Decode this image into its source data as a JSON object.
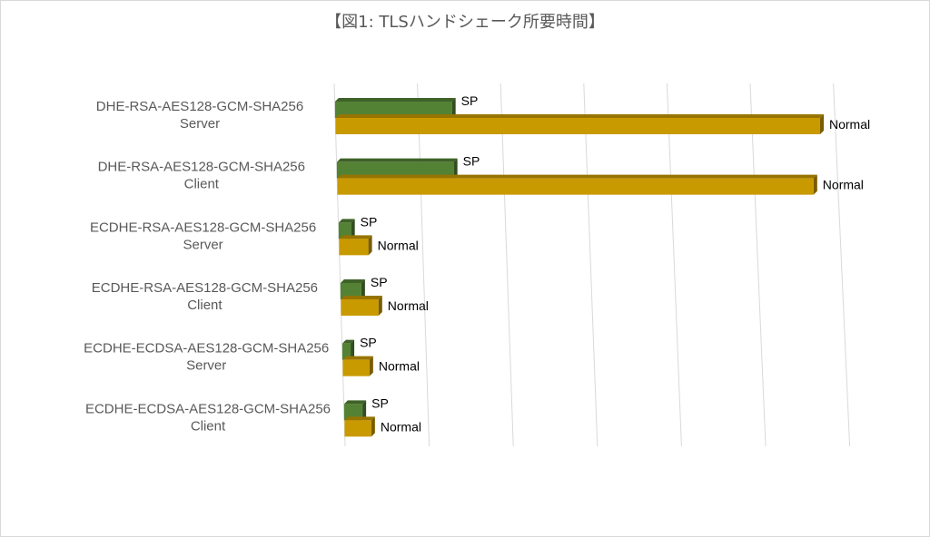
{
  "chart_data": {
    "type": "bar",
    "orientation": "horizontal",
    "three_d": true,
    "title": "【図1: TLSハンドシェーク所要時間】",
    "categories": [
      [
        "DHE-RSA-AES128-GCM-SHA256",
        "Server"
      ],
      [
        "DHE-RSA-AES128-GCM-SHA256",
        "Client"
      ],
      [
        "ECDHE-RSA-AES128-GCM-SHA256",
        "Server"
      ],
      [
        "ECDHE-RSA-AES128-GCM-SHA256",
        "Client"
      ],
      [
        "ECDHE-ECDSA-AES128-GCM-SHA256",
        "Server"
      ],
      [
        "ECDHE-ECDSA-AES128-GCM-SHA256",
        "Client"
      ]
    ],
    "series": [
      {
        "name": "SP",
        "color": "#548235",
        "values": [
          1.4,
          1.4,
          0.15,
          0.25,
          0.1,
          0.22
        ]
      },
      {
        "name": "Normal",
        "color": "#C99A00",
        "values": [
          5.8,
          5.7,
          0.35,
          0.45,
          0.32,
          0.32
        ]
      }
    ],
    "data_labels": [
      "SP",
      "Normal"
    ],
    "xlim": [
      0,
      6
    ],
    "gridlines": true,
    "axis_labels_shown": false,
    "legend": "none"
  }
}
